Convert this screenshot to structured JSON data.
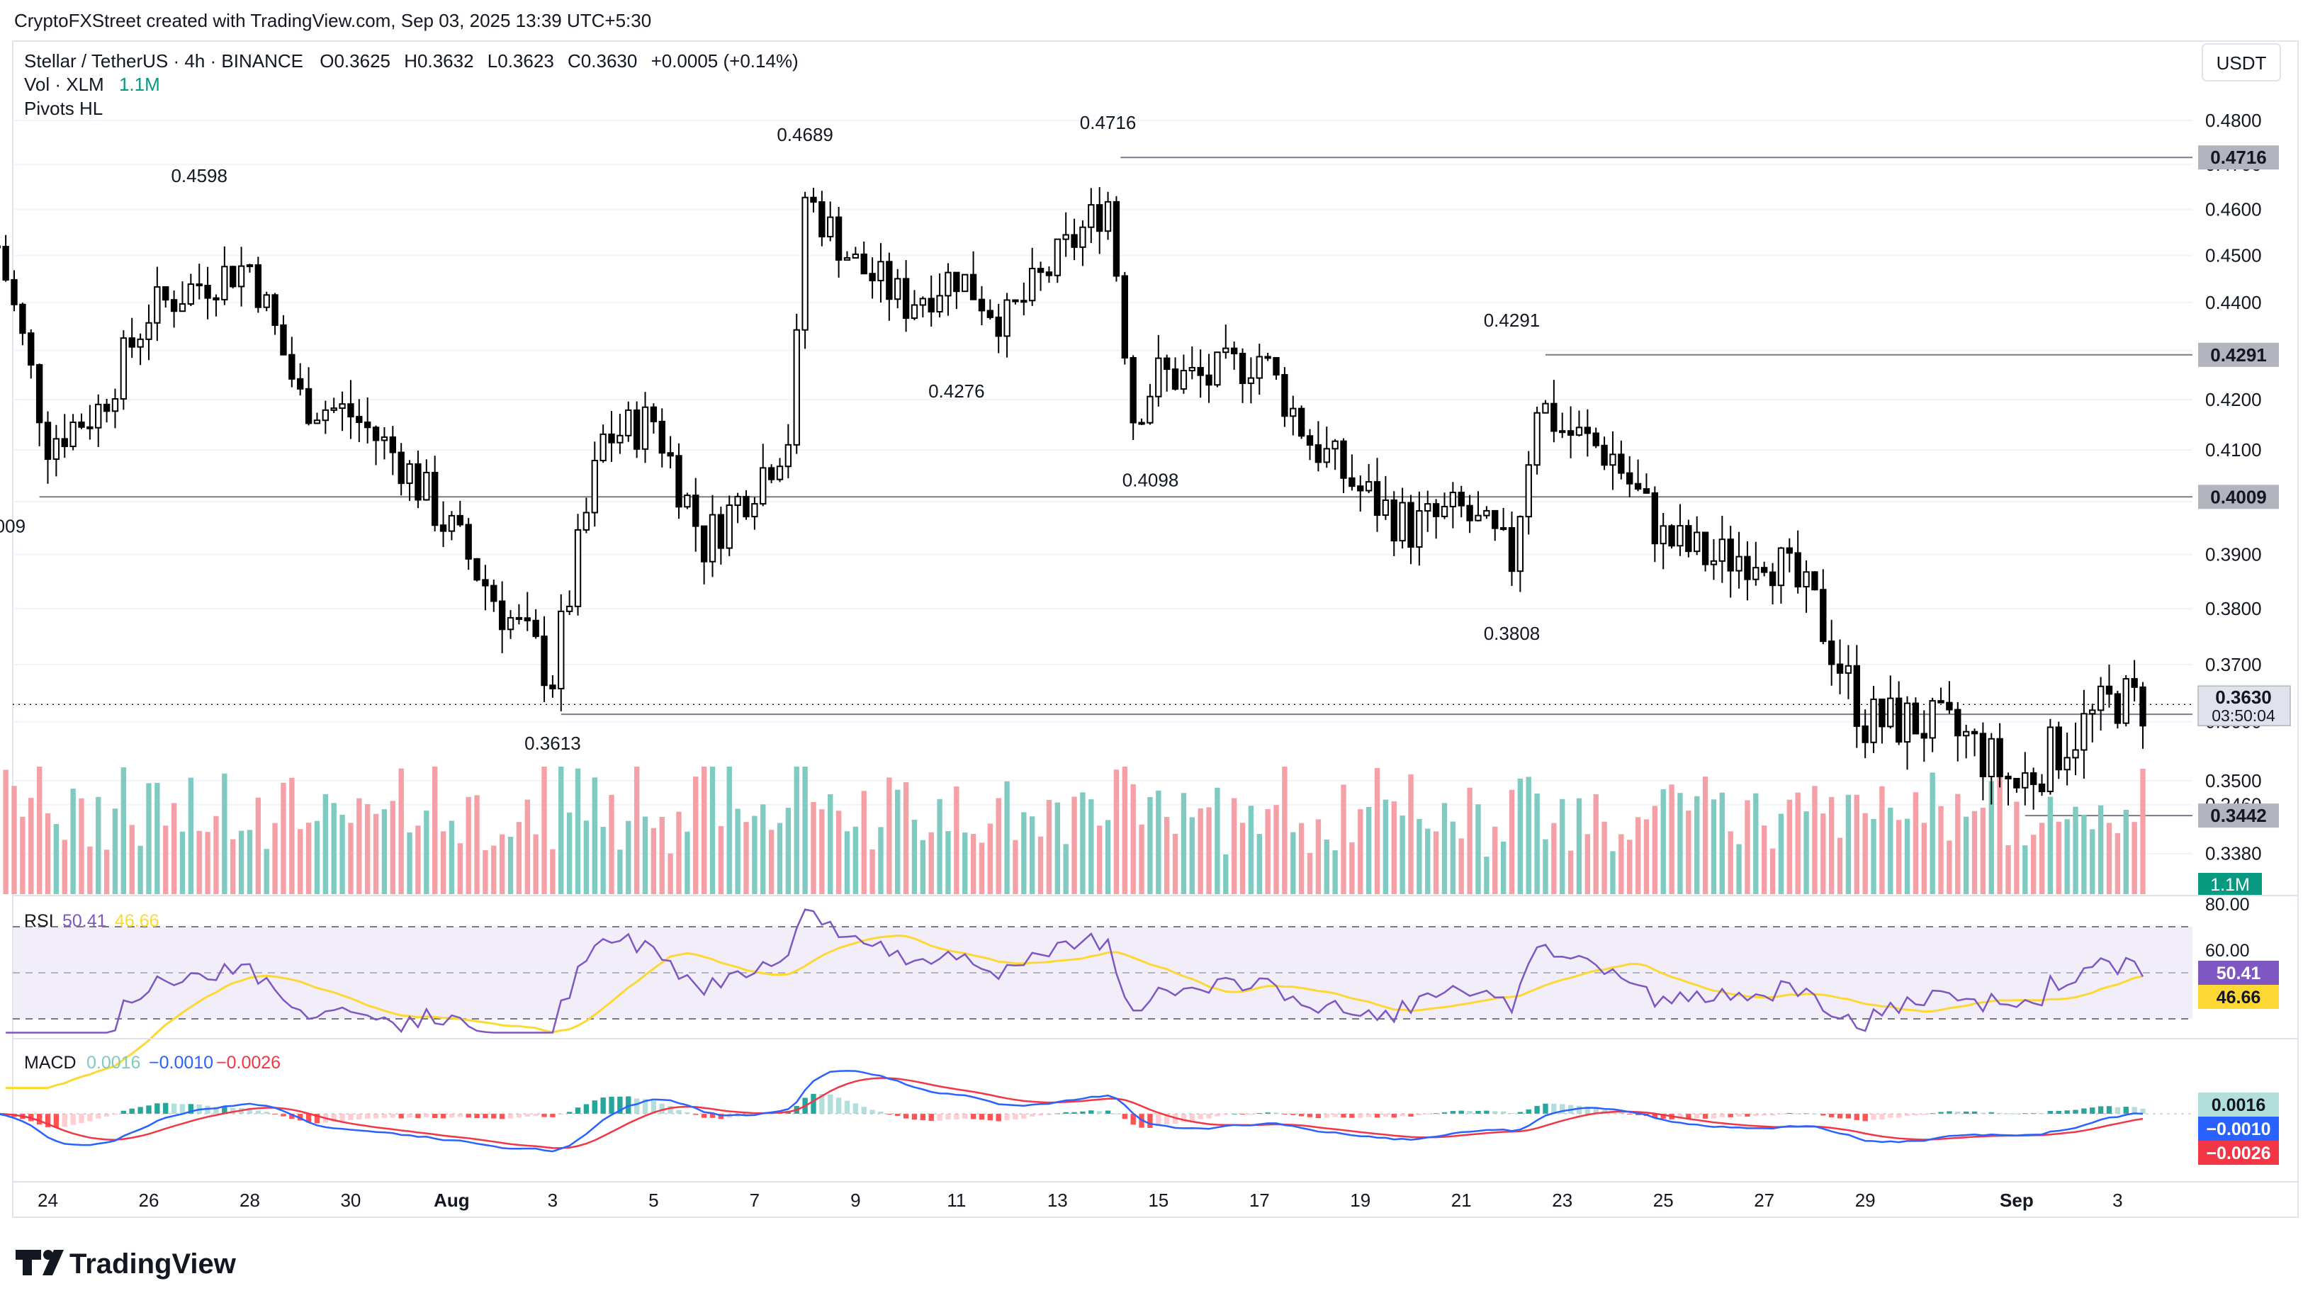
{
  "header": {
    "creator": "CryptoFXStreet created with TradingView.com, Sep 03, 2025 13:39 UTC+5:30"
  },
  "legend": {
    "symbol": "Stellar / TetherUS · 4h · BINANCE",
    "open_label": "O",
    "open": "0.3625",
    "high_label": "H",
    "high": "0.3632",
    "low_label": "L",
    "low": "0.3623",
    "close_label": "C",
    "close": "0.3630",
    "change": "+0.0005 (+0.14%)",
    "vol_label": "Vol · XLM",
    "vol_value": "1.1M",
    "pivots": "Pivots HL"
  },
  "currency_button": "USDT",
  "brand": "TradingView",
  "colors": {
    "up": "#089981",
    "down": "#f23645",
    "candle": "#000000",
    "vol_up": "#7fcbc1",
    "vol_down": "#f5a0a6",
    "rsi_line": "#7e57c2",
    "rsi_ma": "#fdd835",
    "rsi_band": "#ede7f6",
    "macd": "#2962ff",
    "signal": "#f23645",
    "hist_up_strong": "#26a69a",
    "hist_up_weak": "#b2dfdb",
    "hist_down_strong": "#ff5252",
    "hist_down_weak": "#ffcdd2",
    "pivot_line": "#787b86",
    "grid": "#f0f3fa",
    "label_gray": "#b2b5be"
  },
  "price_axis": {
    "ticks": [
      "0.4800",
      "0.4700",
      "0.4600",
      "0.4500",
      "0.4400",
      "0.4300",
      "0.4200",
      "0.4100",
      "0.4000",
      "0.3900",
      "0.3800",
      "0.3700",
      "0.3600",
      "0.3500",
      "0.3460",
      "0.3380"
    ],
    "last_price": "0.3630",
    "countdown": "03:50:04",
    "pivot_badges": [
      "0.4716",
      "0.4291",
      "0.4009",
      "0.3613",
      "0.3442"
    ],
    "volume_badge": "1.1M"
  },
  "time_axis": [
    "24",
    "26",
    "28",
    "30",
    "Aug",
    "3",
    "5",
    "7",
    "9",
    "11",
    "13",
    "15",
    "17",
    "19",
    "21",
    "23",
    "25",
    "27",
    "29",
    "Sep",
    "3"
  ],
  "rsi_panel": {
    "name": "RSI",
    "value": "50.41",
    "ma_value": "46.66",
    "ticks": [
      "80.00",
      "60.00"
    ]
  },
  "macd_panel": {
    "name": "MACD",
    "hist": "0.0016",
    "macd": "−0.0010",
    "signal": "−0.0026",
    "badges": [
      "0.0016",
      "−0.0010",
      "−0.0026"
    ]
  },
  "chart_data": {
    "type": "candlestick",
    "symbol": "Stellar / TetherUS",
    "interval": "4h",
    "exchange": "BINANCE",
    "x_range": [
      "2025-07-23",
      "2025-09-03"
    ],
    "y_range": [
      0.339,
      0.481
    ],
    "pivots": [
      {
        "date": "2025-07-23",
        "label": "0.4009",
        "value": 0.4009,
        "type": "low"
      },
      {
        "date": "2025-07-27",
        "label": "0.4598",
        "value": 0.4598,
        "type": "high"
      },
      {
        "date": "2025-08-03",
        "label": "0.3613",
        "value": 0.3613,
        "type": "low"
      },
      {
        "date": "2025-08-08",
        "label": "0.4689",
        "value": 0.4689,
        "type": "high"
      },
      {
        "date": "2025-08-11",
        "label": "0.4276",
        "value": 0.4276,
        "type": "low"
      },
      {
        "date": "2025-08-14",
        "label": "0.4716",
        "value": 0.4716,
        "type": "high"
      },
      {
        "date": "2025-08-14",
        "label": "0.4098",
        "value": 0.4098,
        "type": "low"
      },
      {
        "date": "2025-08-22",
        "label": "0.3808",
        "value": 0.3808,
        "type": "low"
      },
      {
        "date": "2025-08-22",
        "label": "0.4291",
        "value": 0.4291,
        "type": "high"
      }
    ],
    "horizontal_levels": [
      0.4716,
      0.4291,
      0.4009,
      0.3613,
      0.3442
    ],
    "close_path": [
      [
        "2025-07-23",
        0.452
      ],
      [
        "2025-07-24",
        0.412
      ],
      [
        "2025-07-25",
        0.418
      ],
      [
        "2025-07-26",
        0.438
      ],
      [
        "2025-07-27",
        0.444
      ],
      [
        "2025-07-28",
        0.448
      ],
      [
        "2025-07-29",
        0.42
      ],
      [
        "2025-07-30",
        0.417
      ],
      [
        "2025-07-31",
        0.408
      ],
      [
        "2025-08-01",
        0.394
      ],
      [
        "2025-08-02",
        0.38
      ],
      [
        "2025-08-03",
        0.368
      ],
      [
        "2025-08-04",
        0.412
      ],
      [
        "2025-08-05",
        0.416
      ],
      [
        "2025-08-06",
        0.392
      ],
      [
        "2025-08-07",
        0.404
      ],
      [
        "2025-08-07T18:00",
        0.414
      ],
      [
        "2025-08-08",
        0.463
      ],
      [
        "2025-08-09",
        0.448
      ],
      [
        "2025-08-10",
        0.44
      ],
      [
        "2025-08-11",
        0.446
      ],
      [
        "2025-08-12",
        0.436
      ],
      [
        "2025-08-13",
        0.449
      ],
      [
        "2025-08-14",
        0.462
      ],
      [
        "2025-08-14T12:00",
        0.417
      ],
      [
        "2025-08-15",
        0.425
      ],
      [
        "2025-08-16",
        0.424
      ],
      [
        "2025-08-17",
        0.429
      ],
      [
        "2025-08-18",
        0.412
      ],
      [
        "2025-08-19",
        0.402
      ],
      [
        "2025-08-20",
        0.395
      ],
      [
        "2025-08-21",
        0.398
      ],
      [
        "2025-08-22",
        0.389
      ],
      [
        "2025-08-22T12:00",
        0.42
      ],
      [
        "2025-08-23",
        0.414
      ],
      [
        "2025-08-24",
        0.409
      ],
      [
        "2025-08-25",
        0.393
      ],
      [
        "2025-08-26",
        0.389
      ],
      [
        "2025-08-27",
        0.391
      ],
      [
        "2025-08-28",
        0.38
      ],
      [
        "2025-08-29",
        0.36
      ],
      [
        "2025-08-30",
        0.36
      ],
      [
        "2025-08-31",
        0.357
      ],
      [
        "2025-09-01",
        0.349
      ],
      [
        "2025-09-02",
        0.357
      ],
      [
        "2025-09-03",
        0.364
      ],
      [
        "2025-09-03T12:00",
        0.363
      ]
    ]
  }
}
